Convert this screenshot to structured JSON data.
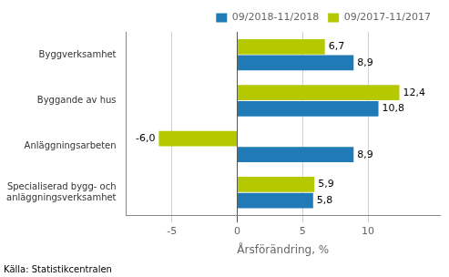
{
  "chart_data": {
    "type": "bar",
    "orientation": "horizontal",
    "categories": [
      "Specialiserad bygg- och\nanläggningsverksamhet",
      "Anläggningsarbeten",
      "Byggande av hus",
      "Byggverksamhet"
    ],
    "series": [
      {
        "name": "09/2018-11/2018",
        "color": "#1f7ab5",
        "values": [
          5.8,
          8.9,
          10.8,
          8.9
        ],
        "value_labels": [
          "5,8",
          "8,9",
          "10,8",
          "8,9"
        ]
      },
      {
        "name": "09/2017-11/2017",
        "color": "#b5c900",
        "values": [
          5.9,
          -6.0,
          12.4,
          6.7
        ],
        "value_labels": [
          "5,9",
          "-6,0",
          "12,4",
          "6,7"
        ]
      }
    ],
    "xlabel": "Årsförändring, %",
    "xlim": [
      -8.5,
      15.5
    ],
    "xticks": [
      -5,
      0,
      5,
      10
    ],
    "grid": true,
    "legend": "upper right",
    "data_labels": true,
    "annotations": [
      "Källa: Statistikcentralen"
    ]
  }
}
